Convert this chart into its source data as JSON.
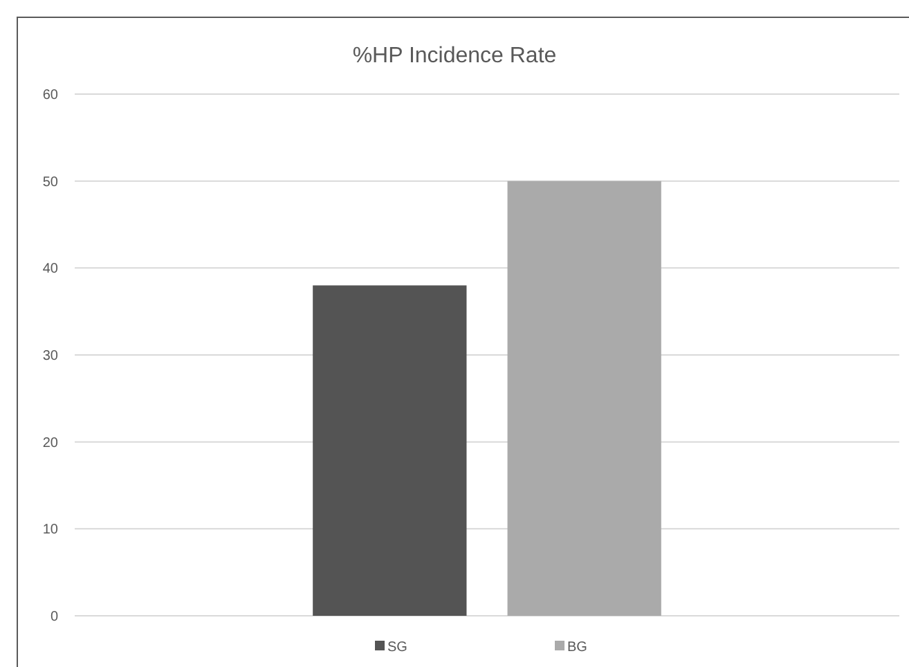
{
  "chart_data": {
    "type": "bar",
    "title": "%HP Incidence Rate",
    "categories": [
      null
    ],
    "series": [
      {
        "name": "SG",
        "color": "#545454",
        "values": [
          38
        ]
      },
      {
        "name": "BG",
        "color": "#aaaaaa",
        "values": [
          50
        ]
      }
    ],
    "ylim": [
      0,
      60
    ],
    "yticks": [
      0,
      10,
      20,
      30,
      40,
      50,
      60
    ],
    "grid": "y",
    "legend": "bottom"
  }
}
